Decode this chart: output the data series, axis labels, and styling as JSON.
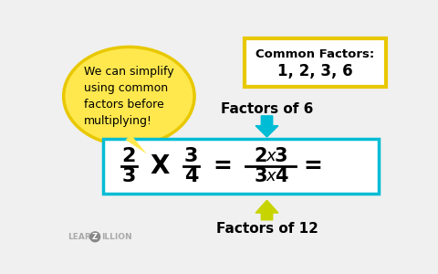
{
  "bg_color": "#f0f0f0",
  "speech_bubble_text": "We can simplify\nusing common\nfactors before\nmultiplying!",
  "speech_bubble_color": "#FFE84D",
  "speech_bubble_border": "#E8C800",
  "common_factors_title": "Common Factors:",
  "common_factors_values": "1, 2, 3, 6",
  "common_factors_box_color": "#E8C800",
  "factors_of_6_label": "Factors of 6",
  "factors_of_12_label": "Factors of 12",
  "arrow_color": "#00BCD4",
  "up_arrow_color": "#C8D400",
  "equation_box_color": "#00BCD4",
  "frac1_num": "2",
  "frac1_den": "3",
  "frac2_num": "3",
  "frac2_den": "4",
  "logo_color": "#aaaaaa"
}
